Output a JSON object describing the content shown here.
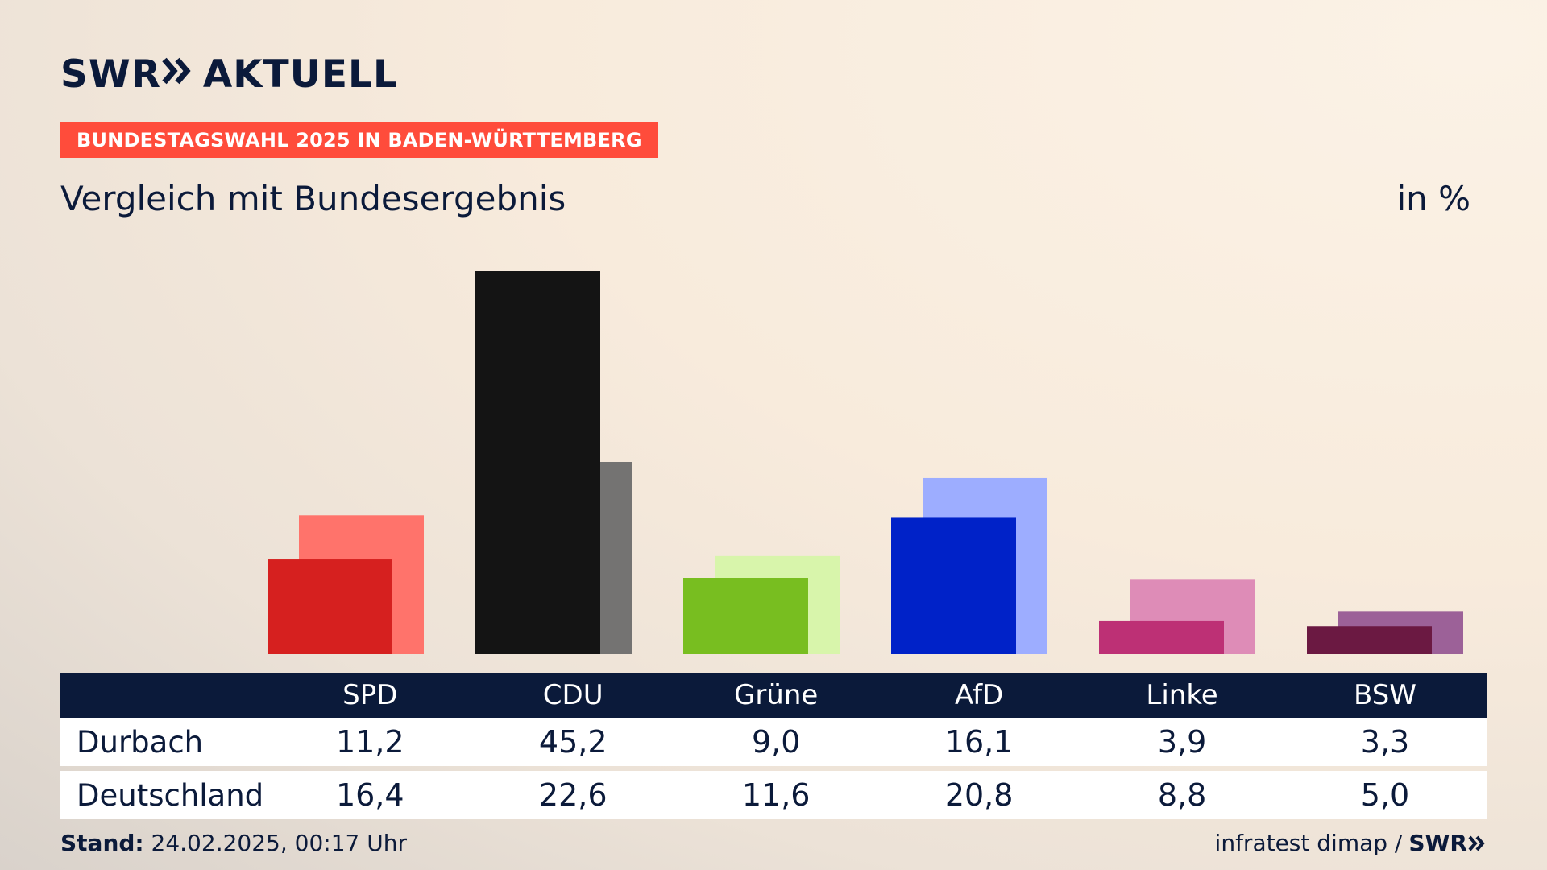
{
  "brand": {
    "logo_left": "SWR",
    "logo_right": "AKTUELL",
    "chevron_icon": "double-chevron-right-icon"
  },
  "badge": "BUNDESTAGSWAHL 2025 IN BADEN-WÜRTTEMBERG",
  "subtitle": "Vergleich mit Bundesergebnis",
  "unit": "in %",
  "table": {
    "rows": [
      {
        "label": "Durbach",
        "values": [
          "11,2",
          "45,2",
          "9,0",
          "16,1",
          "3,9",
          "3,3"
        ]
      },
      {
        "label": "Deutschland",
        "values": [
          "16,4",
          "22,6",
          "11,6",
          "20,8",
          "8,8",
          "5,0"
        ]
      }
    ]
  },
  "footer": {
    "stand_label": "Stand:",
    "stand_value": "24.02.2025, 00:17 Uhr",
    "source": "infratest dimap /",
    "source_brand": "SWR"
  },
  "colors": {
    "background": "#f8ebdc",
    "navy": "#0b1a3a",
    "badge": "#ff4c3b"
  },
  "chart_data": {
    "type": "bar",
    "title": "Vergleich mit Bundesergebnis",
    "ylabel": "in %",
    "ylim": [
      0,
      45.2
    ],
    "categories": [
      "SPD",
      "CDU",
      "Grüne",
      "AfD",
      "Linke",
      "BSW"
    ],
    "series": [
      {
        "name": "Durbach",
        "values": [
          11.2,
          45.2,
          9.0,
          16.1,
          3.9,
          3.3
        ],
        "colors": [
          "#d6201f",
          "#141414",
          "#78be20",
          "#0022c8",
          "#bd3075",
          "#6b1942"
        ]
      },
      {
        "name": "Deutschland",
        "values": [
          16.4,
          22.6,
          11.6,
          20.8,
          8.8,
          5.0
        ],
        "colors": [
          "#ff736b",
          "#747372",
          "#d8f5ab",
          "#9dadff",
          "#de8cb7",
          "#9c6198"
        ]
      }
    ]
  }
}
